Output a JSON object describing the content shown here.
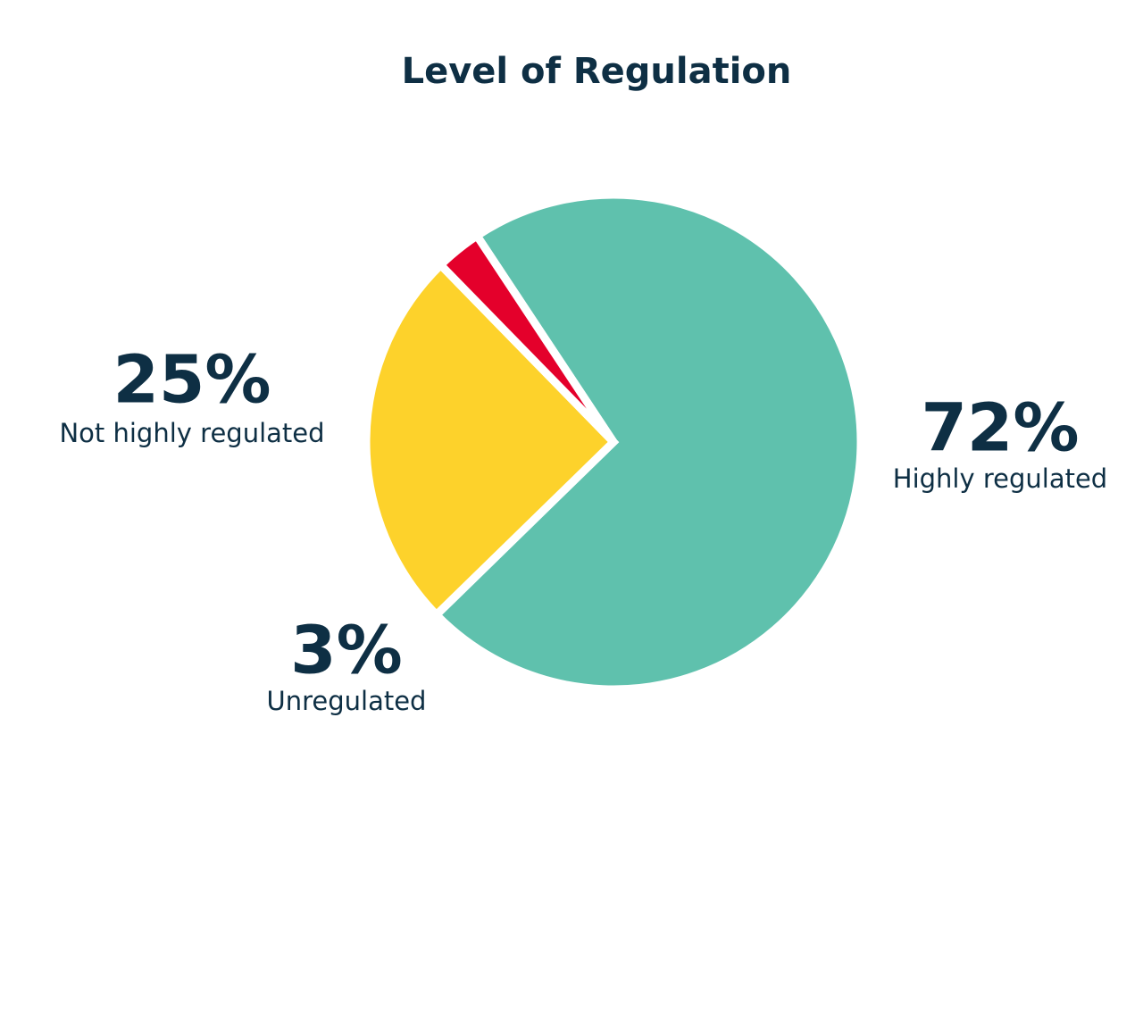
{
  "chart_data": {
    "type": "pie",
    "title": "Level of Regulation",
    "categories": [
      "Highly regulated",
      "Not highly regulated",
      "Unregulated"
    ],
    "values": [
      72,
      25,
      3
    ],
    "value_labels": [
      "72%",
      "25%",
      "3%"
    ],
    "colors": [
      "#5fc1ad",
      "#fdd22b",
      "#e4002b"
    ]
  }
}
